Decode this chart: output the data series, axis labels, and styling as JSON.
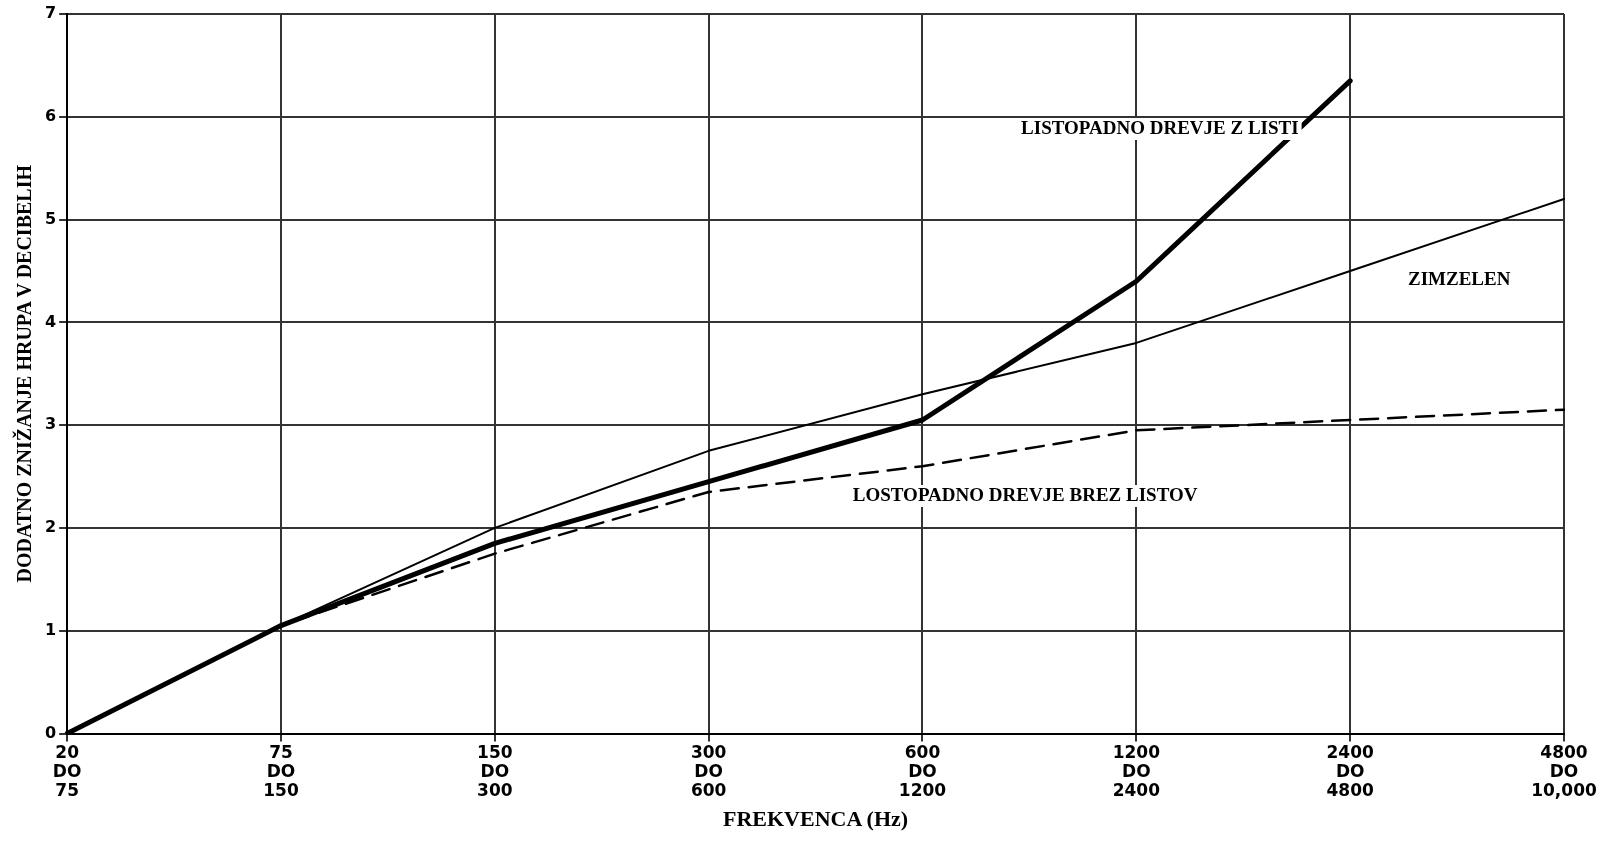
{
  "chart_data": {
    "type": "line",
    "xlabel": "FREKVENCA (Hz)",
    "ylabel": "DODATNO ZNIŽANJE HRUPA V DECIBELIH",
    "categories": [
      "20 DO 75",
      "75 DO 150",
      "150 DO 300",
      "300 DO 600",
      "600 DO 1200",
      "1200 DO 2400",
      "2400 DO 4800",
      "4800 DO 10,000"
    ],
    "ylim": [
      0,
      7
    ],
    "yticks": [
      0,
      1,
      2,
      3,
      4,
      5,
      6,
      7
    ],
    "grid": true,
    "legend": false,
    "marker": "none",
    "series": [
      {
        "name": "LISTOPADNO DREVJE Z LISTI",
        "color": "#000000",
        "line_style": "solid",
        "values": [
          0,
          1.05,
          1.85,
          2.45,
          3.05,
          4.4,
          6.35,
          null
        ]
      },
      {
        "name": "ZIMZELEN",
        "color": "#000000",
        "line_style": "solid",
        "values": [
          0,
          1.05,
          2,
          2.75,
          3.3,
          3.8,
          4.5,
          5.2
        ]
      },
      {
        "name": "LOSTOPADNO DREVJE BREZ LISTOV",
        "color": "#000000",
        "line_style": "dashed",
        "values": [
          0,
          1.05,
          1.75,
          2.35,
          2.6,
          2.95,
          3.05,
          3.15
        ]
      }
    ]
  }
}
